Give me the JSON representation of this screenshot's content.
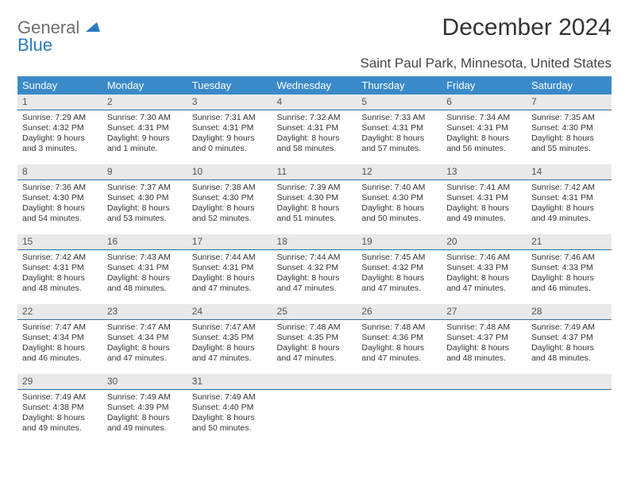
{
  "logo": {
    "word1": "General",
    "word2": "Blue"
  },
  "title": "December 2024",
  "location": "Saint Paul Park, Minnesota, United States",
  "header_color": "#3a8ac9",
  "daynum_bg": "#e9e9e9",
  "daynum_border": "#2b6ea5",
  "weekdays": [
    "Sunday",
    "Monday",
    "Tuesday",
    "Wednesday",
    "Thursday",
    "Friday",
    "Saturday"
  ],
  "days": [
    {
      "n": 1,
      "sr": "7:29 AM",
      "ss": "4:32 PM",
      "dl": "9 hours and 3 minutes."
    },
    {
      "n": 2,
      "sr": "7:30 AM",
      "ss": "4:31 PM",
      "dl": "9 hours and 1 minute."
    },
    {
      "n": 3,
      "sr": "7:31 AM",
      "ss": "4:31 PM",
      "dl": "9 hours and 0 minutes."
    },
    {
      "n": 4,
      "sr": "7:32 AM",
      "ss": "4:31 PM",
      "dl": "8 hours and 58 minutes."
    },
    {
      "n": 5,
      "sr": "7:33 AM",
      "ss": "4:31 PM",
      "dl": "8 hours and 57 minutes."
    },
    {
      "n": 6,
      "sr": "7:34 AM",
      "ss": "4:31 PM",
      "dl": "8 hours and 56 minutes."
    },
    {
      "n": 7,
      "sr": "7:35 AM",
      "ss": "4:30 PM",
      "dl": "8 hours and 55 minutes."
    },
    {
      "n": 8,
      "sr": "7:36 AM",
      "ss": "4:30 PM",
      "dl": "8 hours and 54 minutes."
    },
    {
      "n": 9,
      "sr": "7:37 AM",
      "ss": "4:30 PM",
      "dl": "8 hours and 53 minutes."
    },
    {
      "n": 10,
      "sr": "7:38 AM",
      "ss": "4:30 PM",
      "dl": "8 hours and 52 minutes."
    },
    {
      "n": 11,
      "sr": "7:39 AM",
      "ss": "4:30 PM",
      "dl": "8 hours and 51 minutes."
    },
    {
      "n": 12,
      "sr": "7:40 AM",
      "ss": "4:30 PM",
      "dl": "8 hours and 50 minutes."
    },
    {
      "n": 13,
      "sr": "7:41 AM",
      "ss": "4:31 PM",
      "dl": "8 hours and 49 minutes."
    },
    {
      "n": 14,
      "sr": "7:42 AM",
      "ss": "4:31 PM",
      "dl": "8 hours and 49 minutes."
    },
    {
      "n": 15,
      "sr": "7:42 AM",
      "ss": "4:31 PM",
      "dl": "8 hours and 48 minutes."
    },
    {
      "n": 16,
      "sr": "7:43 AM",
      "ss": "4:31 PM",
      "dl": "8 hours and 48 minutes."
    },
    {
      "n": 17,
      "sr": "7:44 AM",
      "ss": "4:31 PM",
      "dl": "8 hours and 47 minutes."
    },
    {
      "n": 18,
      "sr": "7:44 AM",
      "ss": "4:32 PM",
      "dl": "8 hours and 47 minutes."
    },
    {
      "n": 19,
      "sr": "7:45 AM",
      "ss": "4:32 PM",
      "dl": "8 hours and 47 minutes."
    },
    {
      "n": 20,
      "sr": "7:46 AM",
      "ss": "4:33 PM",
      "dl": "8 hours and 47 minutes."
    },
    {
      "n": 21,
      "sr": "7:46 AM",
      "ss": "4:33 PM",
      "dl": "8 hours and 46 minutes."
    },
    {
      "n": 22,
      "sr": "7:47 AM",
      "ss": "4:34 PM",
      "dl": "8 hours and 46 minutes."
    },
    {
      "n": 23,
      "sr": "7:47 AM",
      "ss": "4:34 PM",
      "dl": "8 hours and 47 minutes."
    },
    {
      "n": 24,
      "sr": "7:47 AM",
      "ss": "4:35 PM",
      "dl": "8 hours and 47 minutes."
    },
    {
      "n": 25,
      "sr": "7:48 AM",
      "ss": "4:35 PM",
      "dl": "8 hours and 47 minutes."
    },
    {
      "n": 26,
      "sr": "7:48 AM",
      "ss": "4:36 PM",
      "dl": "8 hours and 47 minutes."
    },
    {
      "n": 27,
      "sr": "7:48 AM",
      "ss": "4:37 PM",
      "dl": "8 hours and 48 minutes."
    },
    {
      "n": 28,
      "sr": "7:49 AM",
      "ss": "4:37 PM",
      "dl": "8 hours and 48 minutes."
    },
    {
      "n": 29,
      "sr": "7:49 AM",
      "ss": "4:38 PM",
      "dl": "8 hours and 49 minutes."
    },
    {
      "n": 30,
      "sr": "7:49 AM",
      "ss": "4:39 PM",
      "dl": "8 hours and 49 minutes."
    },
    {
      "n": 31,
      "sr": "7:49 AM",
      "ss": "4:40 PM",
      "dl": "8 hours and 50 minutes."
    }
  ],
  "labels": {
    "sunrise": "Sunrise: ",
    "sunset": "Sunset: ",
    "daylight": "Daylight: "
  }
}
